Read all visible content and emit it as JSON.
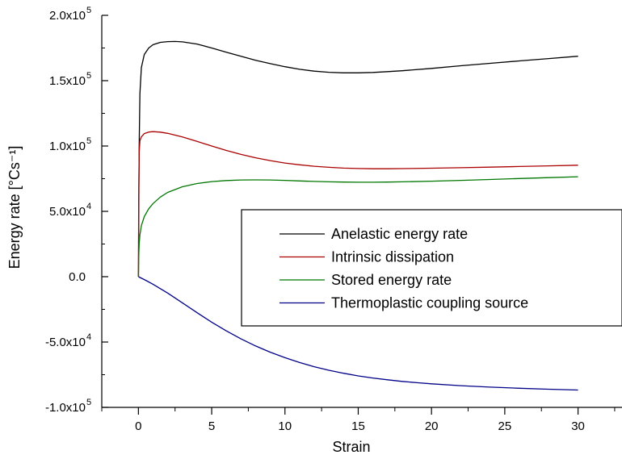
{
  "chart_data": {
    "type": "line",
    "xlabel": "Strain",
    "ylabel": "Energy rate [°Cs⁻¹]",
    "xlim": [
      -2.5,
      33
    ],
    "ylim": [
      -100000,
      200000
    ],
    "x_ticks": [
      {
        "value": 0,
        "label": "0"
      },
      {
        "value": 5,
        "label": "5"
      },
      {
        "value": 10,
        "label": "10"
      },
      {
        "value": 15,
        "label": "15"
      },
      {
        "value": 20,
        "label": "20"
      },
      {
        "value": 25,
        "label": "25"
      },
      {
        "value": 30,
        "label": "30"
      }
    ],
    "y_ticks": [
      {
        "value": -100000,
        "mantissa": "-1.0x10",
        "exp": "5"
      },
      {
        "value": -50000,
        "mantissa": "-5.0x10",
        "exp": "4"
      },
      {
        "value": 0,
        "mantissa": "0.0",
        "exp": ""
      },
      {
        "value": 50000,
        "mantissa": "5.0x10",
        "exp": "4"
      },
      {
        "value": 100000,
        "mantissa": "1.0x10",
        "exp": "5"
      },
      {
        "value": 150000,
        "mantissa": "1.5x10",
        "exp": "5"
      },
      {
        "value": 200000,
        "mantissa": "2.0x10",
        "exp": "5"
      }
    ],
    "legend_position": "center-right",
    "series": [
      {
        "name": "Anelastic energy rate",
        "color": "#000000",
        "points": [
          [
            0,
            0
          ],
          [
            0.02,
            40000
          ],
          [
            0.05,
            100000
          ],
          [
            0.1,
            140000
          ],
          [
            0.2,
            160000
          ],
          [
            0.4,
            170000
          ],
          [
            0.7,
            175000
          ],
          [
            1.0,
            177500
          ],
          [
            1.5,
            179300
          ],
          [
            2.0,
            179900
          ],
          [
            2.5,
            180000
          ],
          [
            3.0,
            179700
          ],
          [
            4.0,
            178000
          ],
          [
            5.0,
            175000
          ],
          [
            6.0,
            171800
          ],
          [
            7.0,
            168700
          ],
          [
            8.0,
            165600
          ],
          [
            9.0,
            163000
          ],
          [
            10.0,
            160700
          ],
          [
            11.0,
            158700
          ],
          [
            12.0,
            157300
          ],
          [
            13.0,
            156400
          ],
          [
            14.0,
            156000
          ],
          [
            15.0,
            156000
          ],
          [
            16.0,
            156300
          ],
          [
            17.0,
            156900
          ],
          [
            18.0,
            157600
          ],
          [
            20.0,
            159400
          ],
          [
            22.0,
            161400
          ],
          [
            24.0,
            163300
          ],
          [
            26.0,
            165100
          ],
          [
            28.0,
            166900
          ],
          [
            30.0,
            168700
          ]
        ]
      },
      {
        "name": "Intrinsic dissipation",
        "color": "#aa0000",
        "points": [
          [
            0,
            0
          ],
          [
            0.02,
            60000
          ],
          [
            0.05,
            95000
          ],
          [
            0.1,
            104000
          ],
          [
            0.2,
            107000
          ],
          [
            0.4,
            109500
          ],
          [
            0.7,
            110700
          ],
          [
            1.0,
            111000
          ],
          [
            1.5,
            110600
          ],
          [
            2.0,
            109700
          ],
          [
            3.0,
            107000
          ],
          [
            4.0,
            103500
          ],
          [
            5.0,
            100000
          ],
          [
            6.0,
            96600
          ],
          [
            7.0,
            93600
          ],
          [
            8.0,
            91000
          ],
          [
            9.0,
            88800
          ],
          [
            10.0,
            87000
          ],
          [
            11.0,
            85600
          ],
          [
            12.0,
            84500
          ],
          [
            13.0,
            83700
          ],
          [
            14.0,
            83100
          ],
          [
            15.0,
            82800
          ],
          [
            16.0,
            82600
          ],
          [
            17.0,
            82600
          ],
          [
            18.0,
            82700
          ],
          [
            20.0,
            83000
          ],
          [
            22.0,
            83400
          ],
          [
            24.0,
            83800
          ],
          [
            26.0,
            84300
          ],
          [
            28.0,
            84800
          ],
          [
            30.0,
            85300
          ]
        ]
      },
      {
        "name": "Stored energy rate",
        "color": "#007700",
        "points": [
          [
            0,
            0
          ],
          [
            0.02,
            15000
          ],
          [
            0.05,
            25000
          ],
          [
            0.1,
            32000
          ],
          [
            0.2,
            39000
          ],
          [
            0.4,
            46000
          ],
          [
            0.7,
            52000
          ],
          [
            1.0,
            56000
          ],
          [
            1.5,
            61000
          ],
          [
            2.0,
            64500
          ],
          [
            3.0,
            68800
          ],
          [
            4.0,
            71300
          ],
          [
            5.0,
            72800
          ],
          [
            6.0,
            73600
          ],
          [
            7.0,
            74000
          ],
          [
            8.0,
            74100
          ],
          [
            9.0,
            74000
          ],
          [
            10.0,
            73700
          ],
          [
            11.0,
            73300
          ],
          [
            12.0,
            72900
          ],
          [
            13.0,
            72600
          ],
          [
            14.0,
            72400
          ],
          [
            15.0,
            72300
          ],
          [
            16.0,
            72300
          ],
          [
            17.0,
            72400
          ],
          [
            18.0,
            72600
          ],
          [
            20.0,
            73100
          ],
          [
            22.0,
            73700
          ],
          [
            24.0,
            74400
          ],
          [
            26.0,
            75100
          ],
          [
            28.0,
            75800
          ],
          [
            30.0,
            76500
          ]
        ]
      },
      {
        "name": "Thermoplastic coupling source",
        "color": "#000088",
        "points": [
          [
            0,
            0
          ],
          [
            0.5,
            -2800
          ],
          [
            1.0,
            -5800
          ],
          [
            2.0,
            -12500
          ],
          [
            3.0,
            -20000
          ],
          [
            4.0,
            -27500
          ],
          [
            5.0,
            -34800
          ],
          [
            6.0,
            -41500
          ],
          [
            7.0,
            -47600
          ],
          [
            8.0,
            -53000
          ],
          [
            9.0,
            -57800
          ],
          [
            10.0,
            -62000
          ],
          [
            11.0,
            -65700
          ],
          [
            12.0,
            -68900
          ],
          [
            13.0,
            -71600
          ],
          [
            14.0,
            -73900
          ],
          [
            15.0,
            -75900
          ],
          [
            16.0,
            -77500
          ],
          [
            17.0,
            -78900
          ],
          [
            18.0,
            -80100
          ],
          [
            19.0,
            -81100
          ],
          [
            20.0,
            -82000
          ],
          [
            22.0,
            -83400
          ],
          [
            24.0,
            -84500
          ],
          [
            26.0,
            -85400
          ],
          [
            28.0,
            -86100
          ],
          [
            30.0,
            -86700
          ]
        ]
      }
    ]
  }
}
